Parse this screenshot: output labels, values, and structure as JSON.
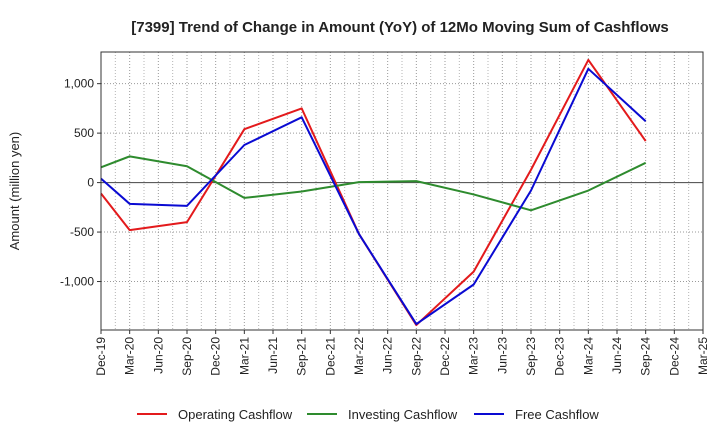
{
  "chart_data": {
    "type": "line",
    "title": "[7399]  Trend of Change in Amount (YoY) of 12Mo Moving Sum of Cashflows",
    "xlabel": "",
    "ylabel": "Amount (million yen)",
    "ylim": [
      -1490,
      1320
    ],
    "yticks": [
      1000,
      500,
      0,
      -500,
      -1000
    ],
    "ytick_labels": [
      "1,000",
      "500",
      "0",
      "-500",
      "-1,000"
    ],
    "grid": true,
    "legend_position": "bottom",
    "categories": [
      "Dec-19",
      "Mar-20",
      "Jun-20",
      "Sep-20",
      "Dec-20",
      "Mar-21",
      "Jun-21",
      "Sep-21",
      "Dec-21",
      "Mar-22",
      "Jun-22",
      "Sep-22",
      "Dec-22",
      "Mar-23",
      "Jun-23",
      "Sep-23",
      "Dec-23",
      "Mar-24",
      "Jun-24",
      "Sep-24",
      "Dec-24",
      "Mar-25"
    ],
    "series": [
      {
        "name": "Operating Cashflow",
        "color": "#e31a1c",
        "values": [
          -110,
          -480,
          null,
          -400,
          null,
          540,
          null,
          750,
          null,
          -520,
          null,
          -1440,
          null,
          -900,
          null,
          130,
          null,
          1240,
          null,
          420,
          null,
          null
        ]
      },
      {
        "name": "Investing Cashflow",
        "color": "#2e8b2e",
        "values": [
          155,
          265,
          null,
          165,
          null,
          -155,
          null,
          -90,
          null,
          5,
          null,
          15,
          null,
          -120,
          null,
          -280,
          null,
          -80,
          null,
          200,
          null,
          null
        ]
      },
      {
        "name": "Free Cashflow",
        "color": "#0a0ad2",
        "values": [
          40,
          -215,
          null,
          -235,
          null,
          380,
          null,
          660,
          null,
          -520,
          null,
          -1430,
          null,
          -1030,
          null,
          -80,
          null,
          1150,
          null,
          620,
          null,
          null
        ]
      }
    ]
  }
}
